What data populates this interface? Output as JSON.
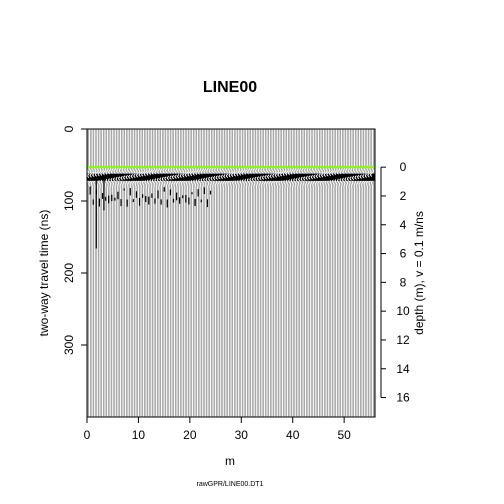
{
  "chart_data": {
    "type": "wiggle",
    "title": "LINE00",
    "xlabel": "m",
    "ylabel": "two-way travel time (ns)",
    "y2label": "depth (m),  v = 0.1 m/ns",
    "footer": "rawGPR/LINE00.DT1",
    "xlim": [
      0,
      56
    ],
    "ylim": [
      400,
      0
    ],
    "x_ticks": [
      0,
      10,
      20,
      30,
      40,
      50
    ],
    "y_ticks": [
      0,
      100,
      200,
      300
    ],
    "depth_ticks": [
      0,
      2,
      4,
      6,
      8,
      10,
      12,
      14,
      16
    ],
    "depth_zero_time_ns": 53,
    "velocity_m_per_ns": 0.1,
    "trace_spacing_m": 0.5,
    "time_zero_line_ns": 53,
    "time_zero_line_color": "#7FFF00",
    "background_color": "#A9A9A9",
    "trace_color": "#FFFFFF",
    "positive_fill_color": "#000000",
    "reflection_band_ns": [
      62,
      72
    ],
    "long_spikes": [
      {
        "x": 1.8,
        "t_end": 166
      },
      {
        "x": 3.3,
        "t_end": 113
      }
    ]
  }
}
